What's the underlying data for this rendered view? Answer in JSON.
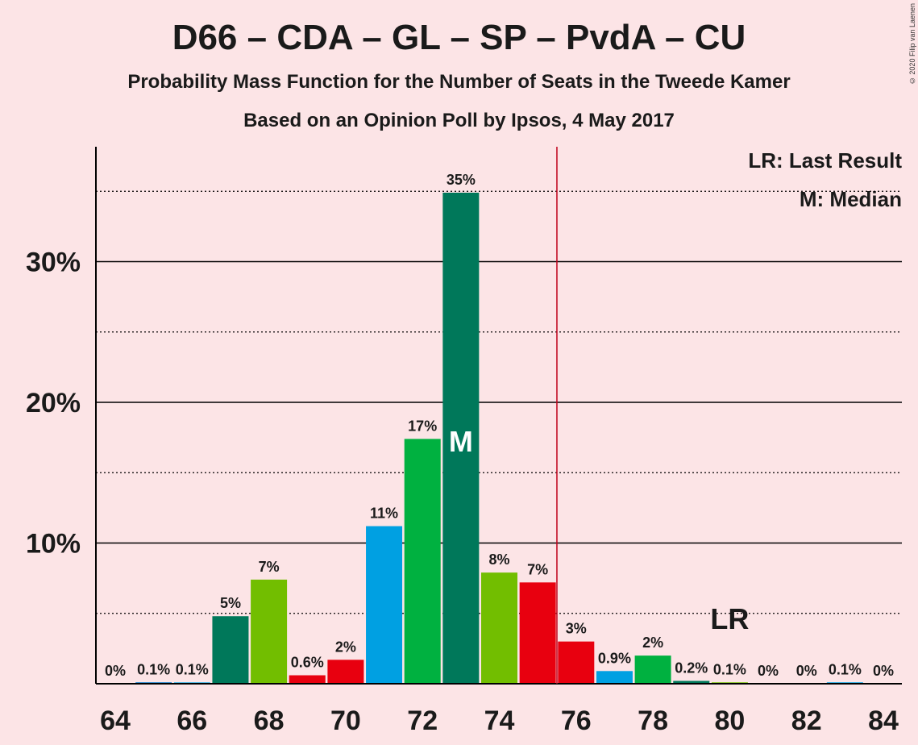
{
  "title": "D66 – CDA – GL – SP – PvdA – CU",
  "subtitle": "Probability Mass Function for the Number of Seats in the Tweede Kamer",
  "subtitle2": "Based on an Opinion Poll by Ipsos, 4 May 2017",
  "copyright": "© 2020 Filip van Laenen",
  "legend": {
    "lr": "LR: Last Result",
    "m": "M: Median"
  },
  "chart_data": {
    "type": "bar",
    "x": [
      64,
      65,
      66,
      67,
      68,
      69,
      70,
      71,
      72,
      73,
      74,
      75,
      76,
      77,
      78,
      79,
      80,
      81,
      82,
      83,
      84
    ],
    "values": [
      0,
      0.1,
      0.1,
      4.8,
      7.4,
      0.6,
      1.7,
      11.2,
      17.4,
      34.9,
      7.9,
      7.2,
      3.0,
      0.9,
      2.0,
      0.2,
      0.1,
      0,
      0,
      0.1,
      0
    ],
    "labels": [
      "0%",
      "0.1%",
      "0.1%",
      "5%",
      "7%",
      "0.6%",
      "2%",
      "11%",
      "17%",
      "35%",
      "8%",
      "7%",
      "3%",
      "0.9%",
      "2%",
      "0.2%",
      "0.1%",
      "0%",
      "0%",
      "0.1%",
      "0%"
    ],
    "colors": [
      "#0077c8",
      "#0077c8",
      "#1ea8e0",
      "#00785a",
      "#72be00",
      "#e8000f",
      "#e8000f",
      "#00a0e2",
      "#00b140",
      "#00785a",
      "#72be00",
      "#e8000f",
      "#e8000f",
      "#00a0e2",
      "#00b140",
      "#00785a",
      "#72be00",
      "#e8000f",
      "#e8000f",
      "#00a0e2",
      "#00b140"
    ],
    "xticks": [
      64,
      66,
      68,
      70,
      72,
      74,
      76,
      78,
      80,
      82,
      84
    ],
    "xtick_labels": [
      "64",
      "66",
      "68",
      "70",
      "72",
      "74",
      "76",
      "78",
      "80",
      "82",
      "84"
    ],
    "yticks": [
      10,
      20,
      30
    ],
    "ytick_labels": [
      "10%",
      "20%",
      "30%"
    ],
    "ylim": [
      0,
      38
    ],
    "dotted_gridlines": [
      5,
      15,
      25,
      35
    ],
    "median": 73,
    "median_label": "M",
    "last_result": 75.5,
    "last_result_label_x": 80,
    "last_result_label": "LR"
  }
}
